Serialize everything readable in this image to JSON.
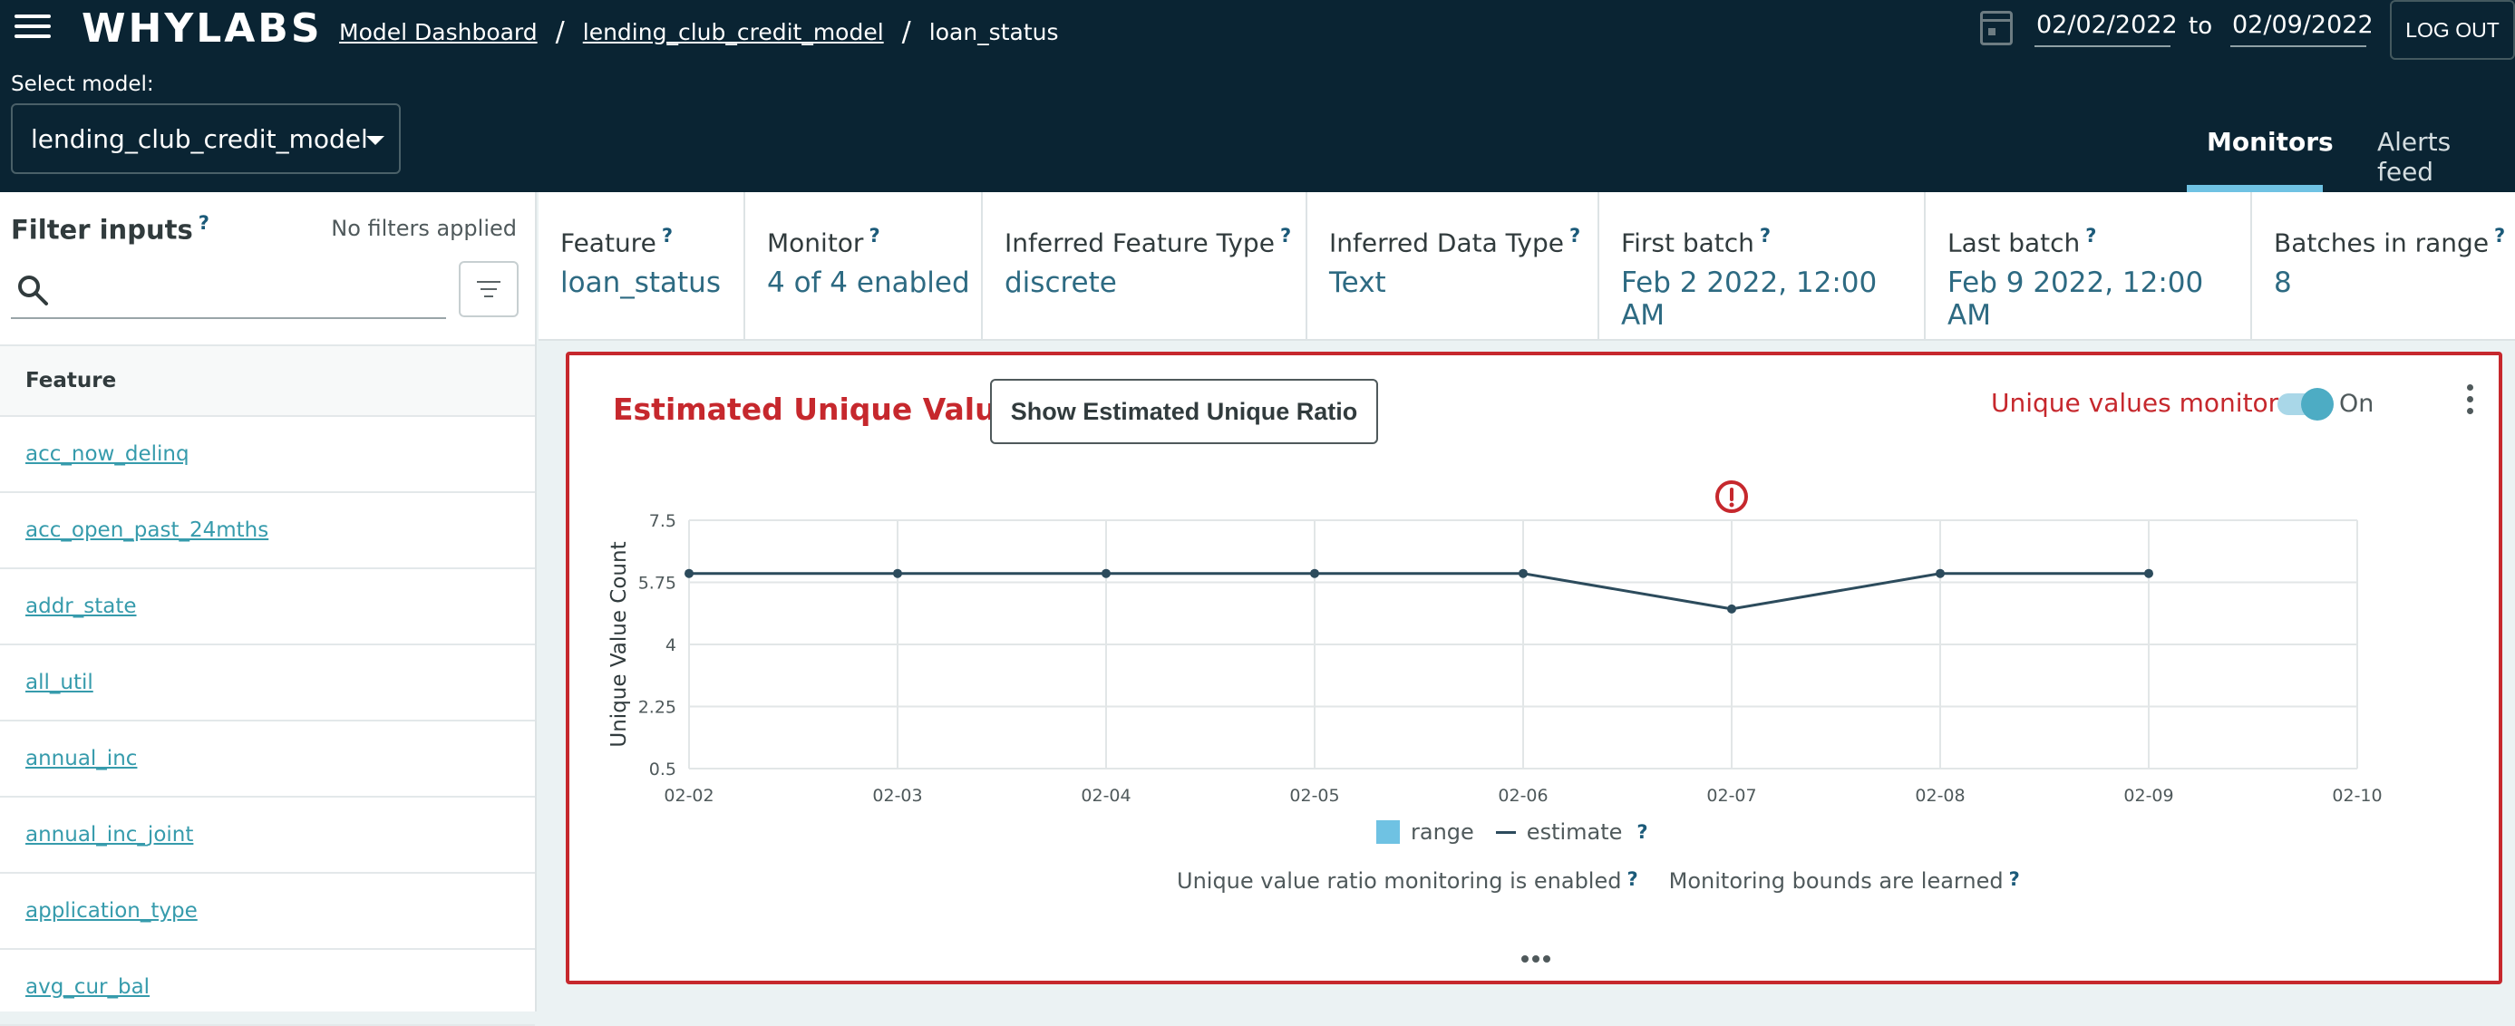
{
  "header": {
    "logo": "WHYLABS",
    "breadcrumb": [
      "Model Dashboard",
      "lending_club_credit_model",
      "loan_status"
    ],
    "date_from": "02/02/2022",
    "date_to_label": "to",
    "date_to": "02/09/2022",
    "logout_label": "LOG OUT",
    "select_label": "Select model:",
    "selected_model": "lending_club_credit_model",
    "tabs": [
      "Monitors",
      "Alerts feed"
    ],
    "active_tab": "Monitors"
  },
  "sidebar": {
    "title": "Filter inputs",
    "help": "?",
    "filter_status": "No filters applied",
    "search_placeholder": "",
    "list_header": "Feature",
    "features": [
      "acc_now_delinq",
      "acc_open_past_24mths",
      "addr_state",
      "all_util",
      "annual_inc",
      "annual_inc_joint",
      "application_type",
      "avg_cur_bal"
    ]
  },
  "info_bar": [
    {
      "label": "Feature",
      "value": "loan_status"
    },
    {
      "label": "Monitor",
      "value": "4 of 4 enabled"
    },
    {
      "label": "Inferred Feature Type",
      "value": "discrete"
    },
    {
      "label": "Inferred Data Type",
      "value": "Text"
    },
    {
      "label": "First batch",
      "value": "Feb 2 2022, 12:00 AM"
    },
    {
      "label": "Last batch",
      "value": "Feb 9 2022, 12:00 AM"
    },
    {
      "label": "Batches in range",
      "value": "8"
    }
  ],
  "card": {
    "title": "Estimated Unique Values",
    "ratio_button_label": "Show Estimated Unique Ratio",
    "monitors_label": "Unique values monitors",
    "toggle_label": "On",
    "toggle_on": true,
    "legend_range": "range",
    "legend_estimate": "estimate",
    "status_ratio": "Unique value ratio monitoring is enabled",
    "status_bounds": "Monitoring bounds are learned"
  },
  "chart_data": {
    "type": "line",
    "title": "",
    "xlabel": "",
    "ylabel": "Unique Value Count",
    "x": [
      "02-02",
      "02-03",
      "02-04",
      "02-05",
      "02-06",
      "02-07",
      "02-08",
      "02-09"
    ],
    "x_ticks": [
      "02-02",
      "02-03",
      "02-04",
      "02-05",
      "02-06",
      "02-07",
      "02-08",
      "02-09",
      "02-10"
    ],
    "y_ticks": [
      "7.5",
      "5.75",
      "4",
      "2.25",
      "0.5"
    ],
    "ylim": [
      0.5,
      7.5
    ],
    "series": [
      {
        "name": "estimate",
        "values": [
          6,
          6,
          6,
          6,
          6,
          5,
          6,
          6
        ],
        "color": "#2c4b5c"
      }
    ],
    "anomaly_index": 5,
    "anomaly_color": "#c6282d",
    "grid": true
  }
}
